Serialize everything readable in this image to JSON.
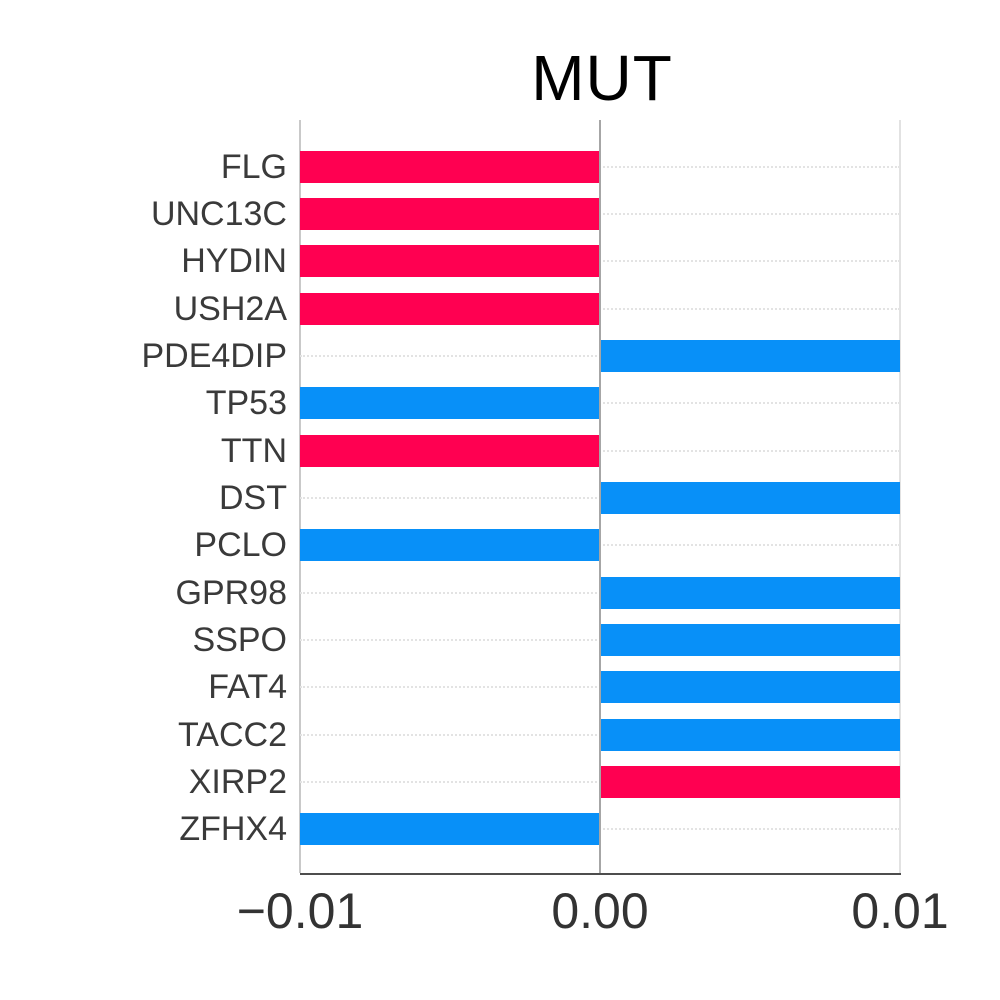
{
  "title": "MUT",
  "colors": {
    "red": "#FF0051",
    "blue": "#0890F8",
    "gene_label": "#3a3a3a",
    "tick_label": "#333333",
    "axis_line": "#4d4d4d",
    "zero_line": "#a6a6a6",
    "left_gridline": "#c9c9c9",
    "right_gridline": "#e2e2e2",
    "dotted_gridline": "#e3e3e3",
    "background": "#ffffff",
    "title_color": "#000000"
  },
  "chart_data": {
    "type": "bar",
    "orientation": "horizontal",
    "title": "MUT",
    "xlabel": "",
    "ylabel": "",
    "xlim": [
      -0.01,
      0.01
    ],
    "grid": "dotted horizontal guide per gene row; vertical lines at -0.01, 0 and 0.01; zero line emphasized",
    "legend": "none",
    "categories": [
      "FLG",
      "UNC13C",
      "HYDIN",
      "USH2A",
      "PDE4DIP",
      "TP53",
      "TTN",
      "DST",
      "PCLO",
      "GPR98",
      "SSPO",
      "FAT4",
      "TACC2",
      "XIRP2",
      "ZFHX4"
    ],
    "values": [
      -0.01,
      -0.01,
      -0.01,
      -0.01,
      0.01,
      -0.01,
      -0.01,
      0.01,
      -0.01,
      0.01,
      0.01,
      0.01,
      0.01,
      0.01,
      -0.01
    ],
    "bar_color_names": [
      "red",
      "red",
      "red",
      "red",
      "blue",
      "blue",
      "red",
      "blue",
      "blue",
      "blue",
      "blue",
      "blue",
      "blue",
      "red",
      "blue"
    ],
    "x_ticks": [
      {
        "label": "−0.01",
        "value": -0.01
      },
      {
        "label": "0.00",
        "value": 0.0
      },
      {
        "label": "0.01",
        "value": 0.01
      }
    ]
  }
}
